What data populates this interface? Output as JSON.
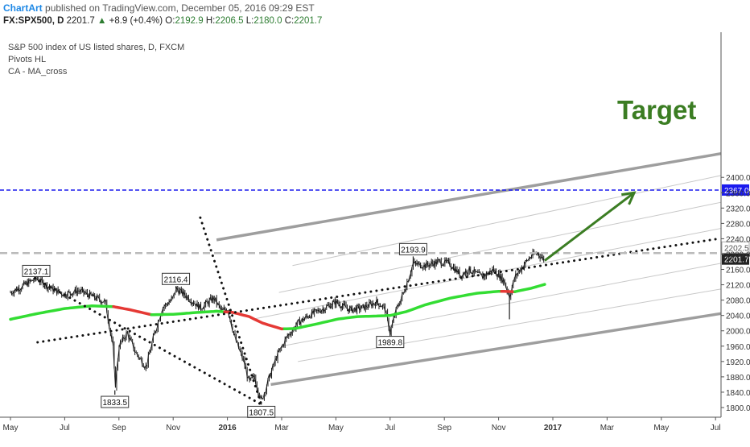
{
  "header": {
    "brand": "ChartArt",
    "published": "published on TradingView.com, December 05, 2016 09:29 EST",
    "symbol": "FX:SPX500, D",
    "last": "2201.7",
    "change_arrow": "▲",
    "change": "+8.9 (+0.4%)",
    "o_label": "O:",
    "o": "2192.9",
    "h_label": "H:",
    "h": "2206.5",
    "l_label": "L:",
    "l": "2180.0",
    "c_label": "C:",
    "c": "2201.7"
  },
  "legend": {
    "line1": "S&P 500 index of US listed shares, D, FXCM",
    "line2": "Pivots HL",
    "line3": "CA - MA_cross"
  },
  "annotation": {
    "target_text": "Target"
  },
  "colors": {
    "ma_green": "#33dd33",
    "ma_red": "#e53935",
    "target_green": "#3b7d23",
    "level_blue": "#1a1aee",
    "channel_gray": "#9e9e9e"
  },
  "chart_data": {
    "type": "line",
    "title": "S&P 500 index of US listed shares, D, FXCM",
    "ylim": [
      1785,
      2465
    ],
    "y_ticks": [
      1800,
      1840,
      1880,
      1920,
      1960,
      2000,
      2040,
      2080,
      2120,
      2160,
      2200,
      2240,
      2280,
      2320,
      2360,
      2400
    ],
    "x_tick_labels": [
      "May",
      "Jul",
      "Sep",
      "Nov",
      "2016",
      "Mar",
      "May",
      "Jul",
      "Sep",
      "Nov",
      "2017",
      "Mar",
      "May",
      "Jul"
    ],
    "x_tick_months": [
      0,
      2,
      4,
      6,
      8,
      10,
      12,
      14,
      16,
      18,
      20,
      22,
      24,
      26
    ],
    "bold_ticks": [
      "2016",
      "2017"
    ],
    "price_labels": [
      {
        "label": "2367.0",
        "value": 2367,
        "style": "blue"
      },
      {
        "label": "2202.5",
        "value": 2202.5,
        "style": "light"
      },
      {
        "label": "2201.7",
        "value": 2201.7,
        "style": "dark"
      }
    ],
    "pivots": [
      {
        "label": "2137.1",
        "month": 0.95,
        "value": 2137.1,
        "type": "high"
      },
      {
        "label": "1833.5",
        "month": 3.85,
        "value": 1833.5,
        "type": "low"
      },
      {
        "label": "2116.4",
        "month": 6.1,
        "value": 2116.4,
        "type": "high"
      },
      {
        "label": "1807.5",
        "month": 9.25,
        "value": 1807.5,
        "type": "low"
      },
      {
        "label": "2193.9",
        "month": 14.85,
        "value": 2193.9,
        "type": "high"
      },
      {
        "label": "1989.8",
        "month": 14.0,
        "value": 1989.8,
        "type": "low"
      }
    ],
    "price_anchors": [
      [
        0,
        2100
      ],
      [
        0.4,
        2115
      ],
      [
        0.95,
        2137
      ],
      [
        1.5,
        2110
      ],
      [
        2,
        2095
      ],
      [
        2.5,
        2105
      ],
      [
        3,
        2090
      ],
      [
        3.5,
        2075
      ],
      [
        3.8,
        1950
      ],
      [
        3.85,
        1845
      ],
      [
        4.0,
        1960
      ],
      [
        4.3,
        1995
      ],
      [
        4.6,
        1945
      ],
      [
        5.0,
        1905
      ],
      [
        5.3,
        1990
      ],
      [
        5.6,
        2060
      ],
      [
        6.0,
        2085
      ],
      [
        6.1,
        2110
      ],
      [
        6.5,
        2090
      ],
      [
        7.0,
        2060
      ],
      [
        7.5,
        2085
      ],
      [
        7.8,
        2050
      ],
      [
        8.0,
        2060
      ],
      [
        8.3,
        1975
      ],
      [
        8.6,
        1920
      ],
      [
        8.8,
        1865
      ],
      [
        9.0,
        1880
      ],
      [
        9.25,
        1815
      ],
      [
        9.5,
        1870
      ],
      [
        9.8,
        1930
      ],
      [
        10.2,
        1985
      ],
      [
        10.6,
        2020
      ],
      [
        11,
        2040
      ],
      [
        11.6,
        2060
      ],
      [
        12.0,
        2075
      ],
      [
        12.5,
        2055
      ],
      [
        13,
        2060
      ],
      [
        13.5,
        2075
      ],
      [
        13.8,
        2060
      ],
      [
        14.0,
        1995
      ],
      [
        14.2,
        2050
      ],
      [
        14.5,
        2100
      ],
      [
        14.85,
        2175
      ],
      [
        15.3,
        2170
      ],
      [
        15.8,
        2180
      ],
      [
        16.2,
        2175
      ],
      [
        16.6,
        2145
      ],
      [
        16.9,
        2160
      ],
      [
        17.4,
        2140
      ],
      [
        17.8,
        2160
      ],
      [
        18.2,
        2130
      ],
      [
        18.4,
        2090
      ],
      [
        18.6,
        2140
      ],
      [
        18.9,
        2170
      ],
      [
        19.2,
        2195
      ],
      [
        19.45,
        2203
      ],
      [
        19.6,
        2190
      ],
      [
        19.7,
        2185
      ]
    ],
    "moving_average": [
      [
        0,
        2030
      ],
      [
        1,
        2045
      ],
      [
        2,
        2058
      ],
      [
        3,
        2065
      ],
      [
        3.8,
        2063
      ],
      [
        4.4,
        2055
      ],
      [
        5.2,
        2042
      ],
      [
        6.0,
        2043
      ],
      [
        6.9,
        2048
      ],
      [
        7.6,
        2051
      ],
      [
        8.2,
        2048
      ],
      [
        8.8,
        2037
      ],
      [
        9.3,
        2020
      ],
      [
        10.0,
        2005
      ],
      [
        10.5,
        2006
      ],
      [
        11.3,
        2018
      ],
      [
        12.1,
        2031
      ],
      [
        12.8,
        2037
      ],
      [
        13.3,
        2038
      ],
      [
        14.0,
        2040
      ],
      [
        14.6,
        2050
      ],
      [
        15.3,
        2068
      ],
      [
        16.2,
        2085
      ],
      [
        17.2,
        2098
      ],
      [
        18.0,
        2103
      ],
      [
        18.6,
        2102
      ],
      [
        19.2,
        2111
      ],
      [
        19.7,
        2121
      ]
    ],
    "ma_red_ranges": [
      [
        3.8,
        5.1
      ],
      [
        7.8,
        10.0
      ],
      [
        18.0,
        18.55
      ]
    ],
    "channel_lines": [
      {
        "p1": [
          7.6,
          2237
        ],
        "p2": [
          26.3,
          2462
        ],
        "weight": "thick"
      },
      {
        "p1": [
          10.4,
          2170
        ],
        "p2": [
          26.8,
          2405
        ],
        "weight": "thin"
      },
      {
        "p1": [
          9.9,
          2100
        ],
        "p2": [
          26.8,
          2335
        ],
        "weight": "thin"
      },
      {
        "p1": [
          8.9,
          2030
        ],
        "p2": [
          26.8,
          2267
        ],
        "weight": "thin"
      },
      {
        "p1": [
          10.0,
          1960
        ],
        "p2": [
          26.8,
          2176
        ],
        "weight": "thin"
      },
      {
        "p1": [
          10.6,
          1920
        ],
        "p2": [
          26.8,
          2109
        ],
        "weight": "thin"
      },
      {
        "p1": [
          9.6,
          1860
        ],
        "p2": [
          26.8,
          2045
        ],
        "weight": "thick"
      }
    ],
    "dotted_lines": [
      {
        "p1": [
          0.9,
          2137
        ],
        "p2": [
          9.25,
          1808
        ]
      },
      {
        "p1": [
          7.0,
          2295
        ],
        "p2": [
          9.25,
          1808
        ]
      },
      {
        "p1": [
          1,
          1970
        ],
        "p2": [
          26.8,
          2241
        ]
      }
    ],
    "horizontal_levels": [
      {
        "value": 2367,
        "style": "blue"
      },
      {
        "value": 2202.5,
        "style": "gray_dashed"
      }
    ],
    "target_arrow": {
      "from": [
        19.7,
        2183
      ],
      "to": [
        23.0,
        2360
      ]
    }
  }
}
